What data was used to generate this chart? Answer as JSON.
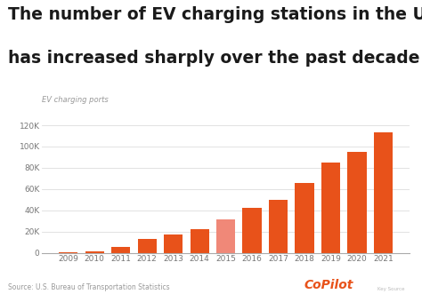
{
  "years": [
    2009,
    2010,
    2011,
    2012,
    2013,
    2014,
    2015,
    2016,
    2017,
    2018,
    2019,
    2020,
    2021
  ],
  "values": [
    300,
    1200,
    5500,
    13000,
    17000,
    22000,
    31500,
    42000,
    50000,
    66000,
    85000,
    95000,
    113000
  ],
  "bar_colors": [
    "#E8521A",
    "#E8521A",
    "#E8521A",
    "#E8521A",
    "#E8521A",
    "#E8521A",
    "#F08878",
    "#E8521A",
    "#E8521A",
    "#E8521A",
    "#E8521A",
    "#E8521A",
    "#E8521A"
  ],
  "title_line1": "The number of EV charging stations in the U.S.",
  "title_line2": "has increased sharply over the past decade",
  "ylabel": "EV charging ports",
  "source": "Source: U.S. Bureau of Transportation Statistics",
  "yticks": [
    0,
    20000,
    40000,
    60000,
    80000,
    100000,
    120000
  ],
  "ytick_labels": [
    "0",
    "20K",
    "40K",
    "60K",
    "80K",
    "100K",
    "120K"
  ],
  "ylim": [
    0,
    130000
  ],
  "background_color": "#ffffff",
  "copilot_color": "#E8521A",
  "title_fontsize": 13.5,
  "tick_fontsize": 6.5,
  "ylabel_fontsize": 6,
  "source_fontsize": 5.5
}
